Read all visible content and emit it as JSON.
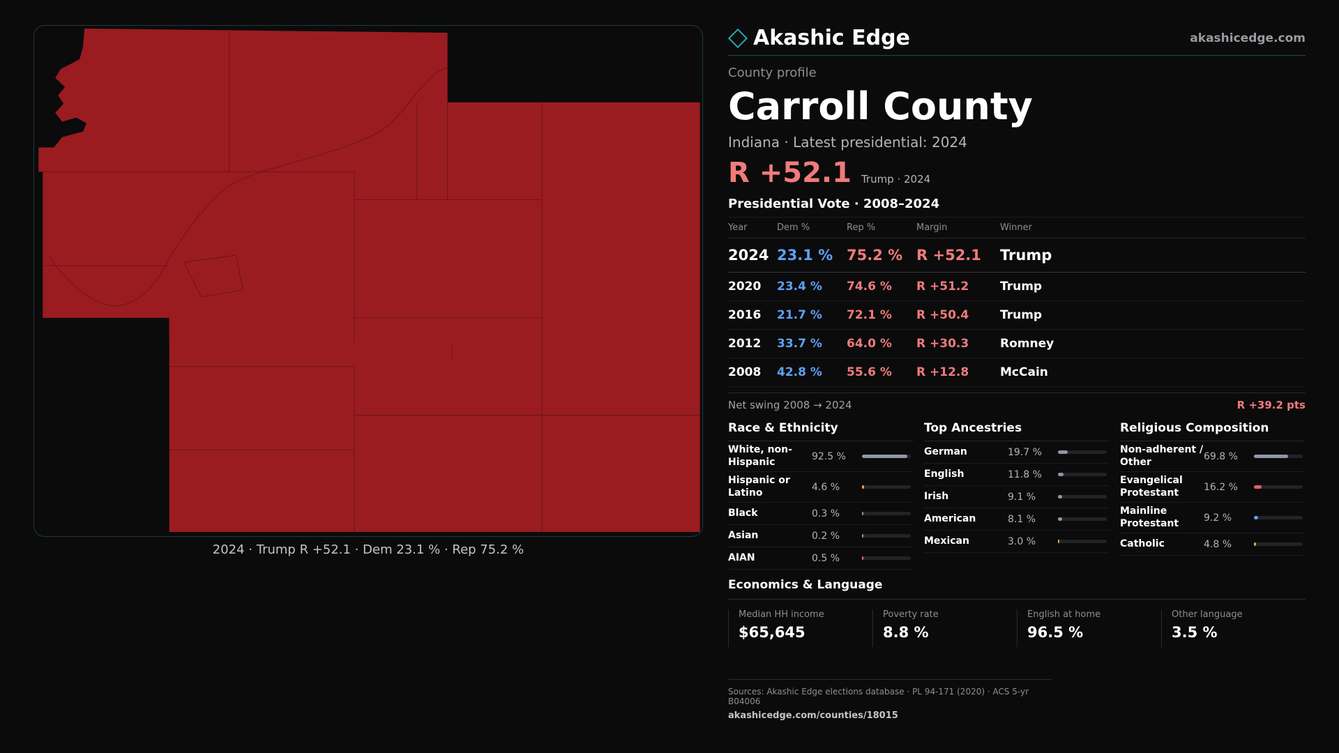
{
  "map": {
    "fill_color": "#9a1c20",
    "caption": "2024 · Trump R +52.1 · Dem 23.1 % · Rep 75.2 %"
  },
  "brand": {
    "name": "Akashic Edge",
    "site": "akashicedge.com",
    "icon": "diamond-icon"
  },
  "profile": {
    "kicker": "County profile",
    "county": "Carroll County",
    "subtitle": "Indiana · Latest presidential: 2024",
    "margin": "R +52.1",
    "margin_sub": "Trump · 2024"
  },
  "votes": {
    "title": "Presidential Vote · 2008–2024",
    "headers": [
      "Year",
      "Dem %",
      "Rep %",
      "Margin",
      "Winner"
    ],
    "rows": [
      {
        "year": "2024",
        "dem": "23.1 %",
        "rep": "75.2 %",
        "margin": "R +52.1",
        "winner": "Trump"
      },
      {
        "year": "2020",
        "dem": "23.4 %",
        "rep": "74.6 %",
        "margin": "R +51.2",
        "winner": "Trump"
      },
      {
        "year": "2016",
        "dem": "21.7 %",
        "rep": "72.1 %",
        "margin": "R +50.4",
        "winner": "Trump"
      },
      {
        "year": "2012",
        "dem": "33.7 %",
        "rep": "64.0 %",
        "margin": "R +30.3",
        "winner": "Romney"
      },
      {
        "year": "2008",
        "dem": "42.8 %",
        "rep": "55.6 %",
        "margin": "R +12.8",
        "winner": "McCain"
      }
    ],
    "swing_label": "Net swing 2008 → 2024",
    "swing_value": "R +39.2 pts"
  },
  "race": {
    "title": "Race & Ethnicity",
    "rows": [
      {
        "label": "White, non-Hispanic",
        "pct": "92.5 %",
        "value": 92.5,
        "color": "#8e96a6"
      },
      {
        "label": "Hispanic or Latino",
        "pct": "4.6 %",
        "value": 4.6,
        "color": "#e8a33a"
      },
      {
        "label": "Black",
        "pct": "0.3 %",
        "value": 0.3,
        "color": "#8e96a6"
      },
      {
        "label": "Asian",
        "pct": "0.2 %",
        "value": 0.2,
        "color": "#8e96a6"
      },
      {
        "label": "AIAN",
        "pct": "0.5 %",
        "value": 0.5,
        "color": "#e07a5f"
      }
    ]
  },
  "ancestry": {
    "title": "Top Ancestries",
    "rows": [
      {
        "label": "German",
        "pct": "19.7 %",
        "value": 19.7,
        "color": "#8e96a6"
      },
      {
        "label": "English",
        "pct": "11.8 %",
        "value": 11.8,
        "color": "#8e96a6"
      },
      {
        "label": "Irish",
        "pct": "9.1 %",
        "value": 9.1,
        "color": "#8e96a6"
      },
      {
        "label": "American",
        "pct": "8.1 %",
        "value": 8.1,
        "color": "#8e96a6"
      },
      {
        "label": "Mexican",
        "pct": "3.0 %",
        "value": 3.0,
        "color": "#e8a33a"
      }
    ]
  },
  "religion": {
    "title": "Religious Composition",
    "rows": [
      {
        "label": "Non-adherent / Other",
        "pct": "69.8 %",
        "value": 69.8,
        "color": "#8e96a6"
      },
      {
        "label": "Evangelical Protestant",
        "pct": "16.2 %",
        "value": 16.2,
        "color": "#e06060"
      },
      {
        "label": "Mainline Protestant",
        "pct": "9.2 %",
        "value": 9.2,
        "color": "#5fa0f5"
      },
      {
        "label": "Catholic",
        "pct": "4.8 %",
        "value": 4.8,
        "color": "#e8a33a"
      }
    ]
  },
  "economics": {
    "title": "Economics & Language",
    "cells": [
      {
        "label": "Median HH income",
        "value": "$65,645"
      },
      {
        "label": "Poverty rate",
        "value": "8.8 %"
      },
      {
        "label": "English at home",
        "value": "96.5 %"
      },
      {
        "label": "Other language",
        "value": "3.5 %"
      }
    ]
  },
  "sources": {
    "line": "Sources: Akashic Edge elections database · PL 94-171 (2020) · ACS 5-yr B04006",
    "url": "akashicedge.com/counties/18015"
  }
}
